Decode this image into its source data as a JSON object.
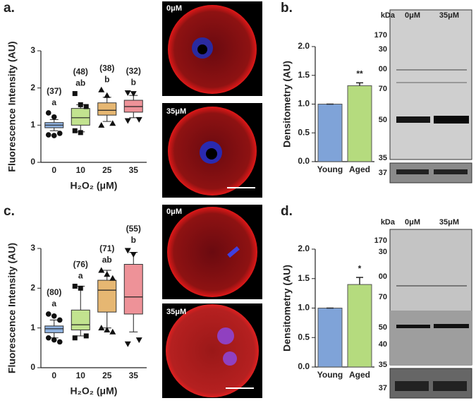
{
  "chart_data": [
    {
      "type": "box",
      "panel_label": "a.",
      "ylabel": "Fluorescence Intensity (AU)",
      "xlabel": "H₂O₂ (μM)",
      "categories": [
        "0",
        "10",
        "25",
        "35"
      ],
      "colors": [
        "#8fb2e0",
        "#c2e38f",
        "#e6b772",
        "#ee9298"
      ],
      "markers": [
        "circle",
        "square",
        "triangle",
        "triangle-down"
      ],
      "boxes": [
        {
          "low": 0.85,
          "q1": 0.93,
          "median": 1.0,
          "q3": 1.07,
          "high": 1.15
        },
        {
          "low": 0.82,
          "q1": 1.0,
          "median": 1.2,
          "q3": 1.45,
          "high": 1.55
        },
        {
          "low": 1.1,
          "q1": 1.27,
          "median": 1.4,
          "q3": 1.6,
          "high": 1.75
        },
        {
          "low": 1.2,
          "q1": 1.35,
          "median": 1.5,
          "q3": 1.67,
          "high": 1.8
        }
      ],
      "outliers": [
        [
          1.33,
          1.22,
          0.78,
          0.74,
          0.72
        ],
        [
          1.85,
          1.55,
          1.5,
          0.85,
          0.8
        ],
        [
          1.95,
          1.8,
          1.05,
          1.0
        ],
        [
          1.87,
          1.85,
          1.15,
          1.12
        ]
      ],
      "counts": [
        "(37)",
        "(48)",
        "(38)",
        "(32)"
      ],
      "letters": [
        "a",
        "ab",
        "b",
        "b"
      ],
      "ylim": [
        0,
        3
      ],
      "yticks": [
        0,
        1,
        2,
        3
      ]
    },
    {
      "type": "bar",
      "panel_label": "b.",
      "ylabel": "Densitometry (AU)",
      "categories": [
        "Young",
        "Aged"
      ],
      "values": [
        1.0,
        1.32
      ],
      "errors": [
        0,
        0.05
      ],
      "colors": [
        "#7fa3d8",
        "#b5db7e"
      ],
      "annotations": [
        {
          "category": "Aged",
          "text": "**"
        }
      ],
      "ylim": [
        0,
        2
      ],
      "yticks": [
        {
          "value": 0,
          "label": "0.0"
        },
        {
          "value": 0.5,
          "label": "0.5"
        },
        {
          "value": 1,
          "label": "1.0"
        },
        {
          "value": 1.5,
          "label": "1.5"
        },
        {
          "value": 2,
          "label": "2.0"
        }
      ]
    },
    {
      "type": "box",
      "panel_label": "c.",
      "ylabel": "Fluorescence Intensity (AU)",
      "xlabel": "H₂O₂ (μM)",
      "categories": [
        "0",
        "10",
        "25",
        "35"
      ],
      "colors": [
        "#8fb2e0",
        "#c2e38f",
        "#e6b772",
        "#ee9298"
      ],
      "markers": [
        "circle",
        "square",
        "triangle",
        "triangle-down"
      ],
      "boxes": [
        {
          "low": 0.75,
          "q1": 0.88,
          "median": 0.98,
          "q3": 1.05,
          "high": 1.2
        },
        {
          "low": 0.8,
          "q1": 0.95,
          "median": 1.08,
          "q3": 1.45,
          "high": 2.05
        },
        {
          "low": 1.0,
          "q1": 1.4,
          "median": 1.95,
          "q3": 2.2,
          "high": 2.45
        },
        {
          "low": 0.9,
          "q1": 1.35,
          "median": 1.78,
          "q3": 2.6,
          "high": 2.9
        }
      ],
      "outliers": [
        [
          1.35,
          1.3,
          1.2,
          0.75,
          0.7,
          0.65
        ],
        [
          2.05,
          2.0,
          0.8,
          0.75
        ],
        [
          2.45,
          2.35,
          2.25,
          1.0,
          0.95,
          0.9
        ],
        [
          2.95,
          2.85,
          0.7,
          0.6
        ]
      ],
      "counts": [
        "(80)",
        "(76)",
        "(71)",
        "(55)"
      ],
      "letters": [
        "a",
        "a",
        "ab",
        "b"
      ],
      "ylim": [
        0,
        3
      ],
      "yticks": [
        0,
        1,
        2,
        3
      ]
    },
    {
      "type": "bar",
      "panel_label": "d.",
      "ylabel": "Densitometry (AU)",
      "categories": [
        "Young",
        "Aged"
      ],
      "values": [
        1.0,
        1.4
      ],
      "errors": [
        0,
        0.12
      ],
      "colors": [
        "#7fa3d8",
        "#b5db7e"
      ],
      "annotations": [
        {
          "category": "Aged",
          "text": "*"
        }
      ],
      "ylim": [
        0,
        2
      ],
      "yticks": [
        {
          "value": 0,
          "label": "0.0"
        },
        {
          "value": 0.5,
          "label": "0.5"
        },
        {
          "value": 1,
          "label": "1.0"
        },
        {
          "value": 1.5,
          "label": "1.5"
        },
        {
          "value": 2,
          "label": "2.0"
        }
      ]
    }
  ],
  "micrographs": [
    {
      "labels": [
        "0μM",
        "35μM"
      ]
    },
    {
      "labels": [
        "0μM",
        "35μM"
      ]
    }
  ],
  "blots": [
    {
      "header": "kDa",
      "lanes": [
        "0μM",
        "35μM"
      ],
      "markers": [
        "170",
        "30",
        "00",
        "70",
        "50",
        "35"
      ],
      "loading_marker": "37"
    },
    {
      "header": "kDa",
      "lanes": [
        "0μM",
        "35μM"
      ],
      "markers": [
        "170",
        "30",
        "00",
        "70",
        "50",
        "40",
        "35"
      ],
      "loading_marker": "37"
    }
  ]
}
